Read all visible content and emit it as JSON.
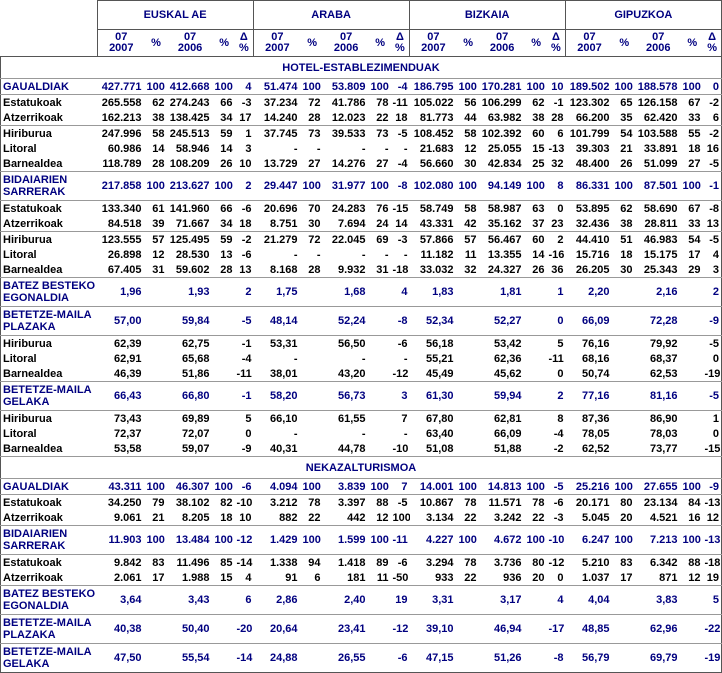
{
  "colors": {
    "accent": "#000080",
    "separator": "#999999",
    "border": "#555555"
  },
  "header": {
    "regions": [
      "EUSKAL AE",
      "ARABA",
      "BIZKAIA",
      "GIPUZKOA"
    ],
    "subcolumns": [
      "07\n2007",
      "%",
      "07\n2006",
      "%",
      "Δ %"
    ]
  },
  "sections": [
    {
      "title": "HOTEL-ESTABLEZIMENDUAK",
      "rows": [
        {
          "label": "GAUALDIAK",
          "style": "primary",
          "sep": true,
          "cells": [
            "427.771",
            "100",
            "412.668",
            "100",
            "4",
            "51.474",
            "100",
            "53.809",
            "100",
            "-4",
            "186.795",
            "100",
            "170.281",
            "100",
            "10",
            "189.502",
            "100",
            "188.578",
            "100",
            "0"
          ]
        },
        {
          "label": "Estatukoak",
          "style": "sub",
          "sep": false,
          "cells": [
            "265.558",
            "62",
            "274.243",
            "66",
            "-3",
            "37.234",
            "72",
            "41.786",
            "78",
            "-11",
            "105.022",
            "56",
            "106.299",
            "62",
            "-1",
            "123.302",
            "65",
            "126.158",
            "67",
            "-2"
          ]
        },
        {
          "label": "Atzerrikoak",
          "style": "sub",
          "sep": true,
          "cells": [
            "162.213",
            "38",
            "138.425",
            "34",
            "17",
            "14.240",
            "28",
            "12.023",
            "22",
            "18",
            "81.773",
            "44",
            "63.982",
            "38",
            "28",
            "66.200",
            "35",
            "62.420",
            "33",
            "6"
          ]
        },
        {
          "label": "Hiriburua",
          "style": "sub",
          "sep": false,
          "cells": [
            "247.996",
            "58",
            "245.513",
            "59",
            "1",
            "37.745",
            "73",
            "39.533",
            "73",
            "-5",
            "108.452",
            "58",
            "102.392",
            "60",
            "6",
            "101.799",
            "54",
            "103.588",
            "55",
            "-2"
          ]
        },
        {
          "label": "Litoral",
          "style": "sub",
          "sep": false,
          "cells": [
            "60.986",
            "14",
            "58.946",
            "14",
            "3",
            "-",
            "-",
            "-",
            "-",
            "-",
            "21.683",
            "12",
            "25.055",
            "15",
            "-13",
            "39.303",
            "21",
            "33.891",
            "18",
            "16"
          ]
        },
        {
          "label": "Barnealdea",
          "style": "sub",
          "sep": true,
          "cells": [
            "118.789",
            "28",
            "108.209",
            "26",
            "10",
            "13.729",
            "27",
            "14.276",
            "27",
            "-4",
            "56.660",
            "30",
            "42.834",
            "25",
            "32",
            "48.400",
            "26",
            "51.099",
            "27",
            "-5"
          ]
        },
        {
          "label": "BIDAIARIEN SARRERAK",
          "style": "primary",
          "sep": true,
          "cells": [
            "217.858",
            "100",
            "213.627",
            "100",
            "2",
            "29.447",
            "100",
            "31.977",
            "100",
            "-8",
            "102.080",
            "100",
            "94.149",
            "100",
            "8",
            "86.331",
            "100",
            "87.501",
            "100",
            "-1"
          ]
        },
        {
          "label": "Estatukoak",
          "style": "sub",
          "sep": false,
          "cells": [
            "133.340",
            "61",
            "141.960",
            "66",
            "-6",
            "20.696",
            "70",
            "24.283",
            "76",
            "-15",
            "58.749",
            "58",
            "58.987",
            "63",
            "0",
            "53.895",
            "62",
            "58.690",
            "67",
            "-8"
          ]
        },
        {
          "label": "Atzerrikoak",
          "style": "sub",
          "sep": true,
          "cells": [
            "84.518",
            "39",
            "71.667",
            "34",
            "18",
            "8.751",
            "30",
            "7.694",
            "24",
            "14",
            "43.331",
            "42",
            "35.162",
            "37",
            "23",
            "32.436",
            "38",
            "28.811",
            "33",
            "13"
          ]
        },
        {
          "label": "Hiriburua",
          "style": "sub",
          "sep": false,
          "cells": [
            "123.555",
            "57",
            "125.495",
            "59",
            "-2",
            "21.279",
            "72",
            "22.045",
            "69",
            "-3",
            "57.866",
            "57",
            "56.467",
            "60",
            "2",
            "44.410",
            "51",
            "46.983",
            "54",
            "-5"
          ]
        },
        {
          "label": "Litoral",
          "style": "sub",
          "sep": false,
          "cells": [
            "26.898",
            "12",
            "28.530",
            "13",
            "-6",
            "-",
            "-",
            "-",
            "-",
            "-",
            "11.182",
            "11",
            "13.355",
            "14",
            "-16",
            "15.716",
            "18",
            "15.175",
            "17",
            "4"
          ]
        },
        {
          "label": "Barnealdea",
          "style": "sub",
          "sep": true,
          "cells": [
            "67.405",
            "31",
            "59.602",
            "28",
            "13",
            "8.168",
            "28",
            "9.932",
            "31",
            "-18",
            "33.032",
            "32",
            "24.327",
            "26",
            "36",
            "26.205",
            "30",
            "25.343",
            "29",
            "3"
          ]
        },
        {
          "label": "BATEZ BESTEKO EGONALDIA",
          "style": "primary",
          "sep": true,
          "cells": [
            "1,96",
            "",
            "1,93",
            "",
            "2",
            "1,75",
            "",
            "1,68",
            "",
            "4",
            "1,83",
            "",
            "1,81",
            "",
            "1",
            "2,20",
            "",
            "2,16",
            "",
            "2"
          ]
        },
        {
          "label": "BETETZE-MAILA PLAZAKA",
          "style": "primary",
          "sep": true,
          "cells": [
            "57,00",
            "",
            "59,84",
            "",
            "-5",
            "48,14",
            "",
            "52,24",
            "",
            "-8",
            "52,34",
            "",
            "52,27",
            "",
            "0",
            "66,09",
            "",
            "72,28",
            "",
            "-9"
          ]
        },
        {
          "label": "Hiriburua",
          "style": "sub",
          "sep": false,
          "cells": [
            "62,39",
            "",
            "62,75",
            "",
            "-1",
            "53,31",
            "",
            "56,50",
            "",
            "-6",
            "56,18",
            "",
            "53,42",
            "",
            "5",
            "76,16",
            "",
            "79,92",
            "",
            "-5"
          ]
        },
        {
          "label": "Litoral",
          "style": "sub",
          "sep": false,
          "cells": [
            "62,91",
            "",
            "65,68",
            "",
            "-4",
            "-",
            "",
            "-",
            "",
            "-",
            "55,21",
            "",
            "62,36",
            "",
            "-11",
            "68,16",
            "",
            "68,37",
            "",
            "0"
          ]
        },
        {
          "label": "Barnealdea",
          "style": "sub",
          "sep": true,
          "cells": [
            "46,39",
            "",
            "51,86",
            "",
            "-11",
            "38,01",
            "",
            "43,20",
            "",
            "-12",
            "45,49",
            "",
            "45,62",
            "",
            "0",
            "50,74",
            "",
            "62,53",
            "",
            "-19"
          ]
        },
        {
          "label": "BETETZE-MAILA GELAKA",
          "style": "primary",
          "sep": true,
          "cells": [
            "66,43",
            "",
            "66,80",
            "",
            "-1",
            "58,20",
            "",
            "56,73",
            "",
            "3",
            "61,30",
            "",
            "59,94",
            "",
            "2",
            "77,16",
            "",
            "81,16",
            "",
            "-5"
          ]
        },
        {
          "label": "Hiriburua",
          "style": "sub",
          "sep": false,
          "cells": [
            "73,43",
            "",
            "69,89",
            "",
            "5",
            "66,10",
            "",
            "61,55",
            "",
            "7",
            "67,80",
            "",
            "62,81",
            "",
            "8",
            "87,36",
            "",
            "86,90",
            "",
            "1"
          ]
        },
        {
          "label": "Litoral",
          "style": "sub",
          "sep": false,
          "cells": [
            "72,37",
            "",
            "72,07",
            "",
            "0",
            "-",
            "",
            "-",
            "",
            "-",
            "63,40",
            "",
            "66,09",
            "",
            "-4",
            "78,05",
            "",
            "78,03",
            "",
            "0"
          ]
        },
        {
          "label": "Barnealdea",
          "style": "sub",
          "sep": true,
          "cells": [
            "53,58",
            "",
            "59,07",
            "",
            "-9",
            "40,31",
            "",
            "44,78",
            "",
            "-10",
            "51,08",
            "",
            "51,88",
            "",
            "-2",
            "62,52",
            "",
            "73,77",
            "",
            "-15"
          ]
        }
      ]
    },
    {
      "title": "NEKAZALTURISMOA",
      "rows": [
        {
          "label": "GAUALDIAK",
          "style": "primary",
          "sep": true,
          "cells": [
            "43.311",
            "100",
            "46.307",
            "100",
            "-6",
            "4.094",
            "100",
            "3.839",
            "100",
            "7",
            "14.001",
            "100",
            "14.813",
            "100",
            "-5",
            "25.216",
            "100",
            "27.655",
            "100",
            "-9"
          ]
        },
        {
          "label": "Estatukoak",
          "style": "sub",
          "sep": false,
          "cells": [
            "34.250",
            "79",
            "38.102",
            "82",
            "-10",
            "3.212",
            "78",
            "3.397",
            "88",
            "-5",
            "10.867",
            "78",
            "11.571",
            "78",
            "-6",
            "20.171",
            "80",
            "23.134",
            "84",
            "-13"
          ]
        },
        {
          "label": "Atzerrikoak",
          "style": "sub",
          "sep": true,
          "cells": [
            "9.061",
            "21",
            "8.205",
            "18",
            "10",
            "882",
            "22",
            "442",
            "12",
            "100",
            "3.134",
            "22",
            "3.242",
            "22",
            "-3",
            "5.045",
            "20",
            "4.521",
            "16",
            "12"
          ]
        },
        {
          "label": "BIDAIARIEN SARRERAK",
          "style": "primary",
          "sep": true,
          "cells": [
            "11.903",
            "100",
            "13.484",
            "100",
            "-12",
            "1.429",
            "100",
            "1.599",
            "100",
            "-11",
            "4.227",
            "100",
            "4.672",
            "100",
            "-10",
            "6.247",
            "100",
            "7.213",
            "100",
            "-13"
          ]
        },
        {
          "label": "Estatukoak",
          "style": "sub",
          "sep": false,
          "cells": [
            "9.842",
            "83",
            "11.496",
            "85",
            "-14",
            "1.338",
            "94",
            "1.418",
            "89",
            "-6",
            "3.294",
            "78",
            "3.736",
            "80",
            "-12",
            "5.210",
            "83",
            "6.342",
            "88",
            "-18"
          ]
        },
        {
          "label": "Atzerrikoak",
          "style": "sub",
          "sep": true,
          "cells": [
            "2.061",
            "17",
            "1.988",
            "15",
            "4",
            "91",
            "6",
            "181",
            "11",
            "-50",
            "933",
            "22",
            "936",
            "20",
            "0",
            "1.037",
            "17",
            "871",
            "12",
            "19"
          ]
        },
        {
          "label": "BATEZ BESTEKO EGONALDIA",
          "style": "primary",
          "sep": true,
          "cells": [
            "3,64",
            "",
            "3,43",
            "",
            "6",
            "2,86",
            "",
            "2,40",
            "",
            "19",
            "3,31",
            "",
            "3,17",
            "",
            "4",
            "4,04",
            "",
            "3,83",
            "",
            "5"
          ]
        },
        {
          "label": "BETETZE-MAILA PLAZAKA",
          "style": "primary",
          "sep": true,
          "cells": [
            "40,38",
            "",
            "50,40",
            "",
            "-20",
            "20,64",
            "",
            "23,41",
            "",
            "-12",
            "39,10",
            "",
            "46,94",
            "",
            "-17",
            "48,85",
            "",
            "62,96",
            "",
            "-22"
          ]
        },
        {
          "label": "BETETZE-MAILA GELAKA",
          "style": "primary",
          "sep": false,
          "cells": [
            "47,50",
            "",
            "55,54",
            "",
            "-14",
            "24,88",
            "",
            "26,55",
            "",
            "-6",
            "47,15",
            "",
            "51,26",
            "",
            "-8",
            "56,79",
            "",
            "69,79",
            "",
            "-19"
          ]
        }
      ]
    }
  ]
}
